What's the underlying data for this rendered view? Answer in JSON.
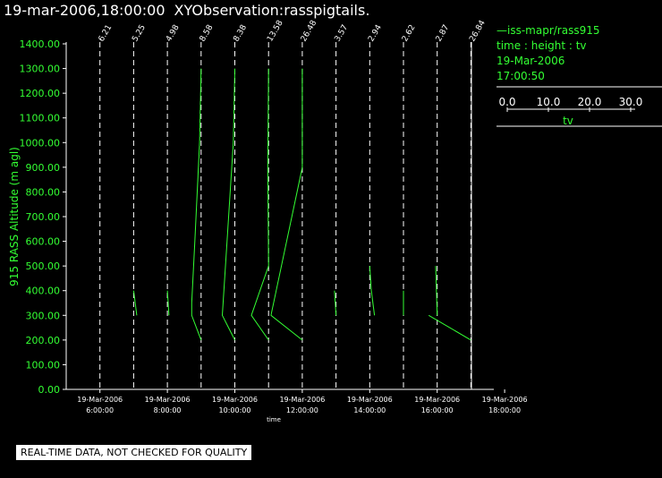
{
  "header": {
    "timestamp": "19-mar-2006,18:00:00",
    "product": "XYObservation:rasspigtails."
  },
  "legend": {
    "series_label": "—iss-mapr/rass915",
    "line2": "time : height : tv",
    "line3": "19-Mar-2006",
    "line4": "17:00:50",
    "scale_ticks": [
      "0.0",
      "10.0",
      "20.0",
      "30.0"
    ],
    "scale_label": "tv"
  },
  "footer": {
    "note": "REAL-TIME DATA, NOT CHECKED FOR QUALITY"
  },
  "colors": {
    "background": "#000000",
    "data": "#33ff33",
    "text": "#ffffff"
  },
  "chart_data": {
    "type": "line",
    "ylabel": "915 RASS Altitude (m agl)",
    "xlabel": "time",
    "ylim": [
      0,
      1400
    ],
    "xlim": [
      5,
      18.25
    ],
    "y_ticks": [
      "0.00",
      "100.00",
      "200.00",
      "300.00",
      "400.00",
      "500.00",
      "600.00",
      "700.00",
      "800.00",
      "900.00",
      "1000.00",
      "1100.00",
      "1200.00",
      "1300.00",
      "1400.00"
    ],
    "x_ticks": [
      {
        "x": 6,
        "date": "19-Mar-2006",
        "time": "6:00:00"
      },
      {
        "x": 8,
        "date": "19-Mar-2006",
        "time": "8:00:00"
      },
      {
        "x": 10,
        "date": "19-Mar-2006",
        "time": "10:00:00"
      },
      {
        "x": 12,
        "date": "19-Mar-2006",
        "time": "12:00:00"
      },
      {
        "x": 14,
        "date": "19-Mar-2006",
        "time": "14:00:00"
      },
      {
        "x": 16,
        "date": "19-Mar-2006",
        "time": "16:00:00"
      },
      {
        "x": 18,
        "date": "19-Mar-2006",
        "time": "18:00:00"
      }
    ],
    "grid_vertical": "dashed, every hour",
    "profiles": [
      {
        "time": 6,
        "label": "6.21",
        "points": []
      },
      {
        "time": 7,
        "label": "5.25",
        "points": [
          [
            0.0,
            400
          ],
          [
            0.2,
            300
          ]
        ]
      },
      {
        "time": 8,
        "label": "4.98",
        "points": [
          [
            0.0,
            400
          ],
          [
            0.1,
            300
          ]
        ]
      },
      {
        "time": 9,
        "label": "8.58",
        "points": [
          [
            0.0,
            1300
          ],
          [
            -0.1,
            1000
          ],
          [
            -0.4,
            600
          ],
          [
            -0.6,
            350
          ],
          [
            -0.6,
            300
          ],
          [
            0.0,
            200
          ]
        ]
      },
      {
        "time": 10,
        "label": "8.38",
        "points": [
          [
            0.0,
            1300
          ],
          [
            -0.1,
            1000
          ],
          [
            -0.5,
            600
          ],
          [
            -0.8,
            300
          ],
          [
            0.0,
            200
          ]
        ]
      },
      {
        "time": 11,
        "label": "13.58",
        "points": [
          [
            0.0,
            1300
          ],
          [
            -0.05,
            900
          ],
          [
            0.0,
            500
          ],
          [
            -1.1,
            300
          ],
          [
            0.0,
            200
          ]
        ]
      },
      {
        "time": 12,
        "label": "26.48",
        "points": [
          [
            0.0,
            1300
          ],
          [
            0.0,
            900
          ],
          [
            -2.0,
            300
          ],
          [
            0.0,
            200
          ]
        ]
      },
      {
        "time": 13,
        "label": "3.57",
        "points": [
          [
            -0.1,
            400
          ],
          [
            0.0,
            300
          ]
        ]
      },
      {
        "time": 14,
        "label": "2.94",
        "points": [
          [
            0.0,
            500
          ],
          [
            0.1,
            400
          ],
          [
            0.3,
            300
          ]
        ]
      },
      {
        "time": 15,
        "label": "2.62",
        "points": [
          [
            0.0,
            400
          ],
          [
            0.0,
            300
          ]
        ]
      },
      {
        "time": 16,
        "label": "2.87",
        "points": [
          [
            -0.1,
            500
          ],
          [
            0.0,
            300
          ]
        ]
      },
      {
        "time": 17,
        "label": "26.84",
        "points": [
          [
            -2.7,
            300
          ],
          [
            0.0,
            200
          ]
        ]
      }
    ]
  }
}
